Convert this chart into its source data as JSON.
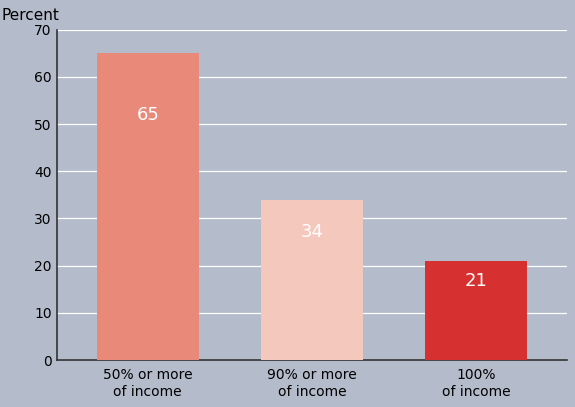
{
  "categories": [
    "50% or more\nof income",
    "90% or more\nof income",
    "100%\nof income"
  ],
  "values": [
    65,
    34,
    21
  ],
  "bar_colors": [
    "#e8897a",
    "#f5c8be",
    "#d63030"
  ],
  "bar_labels": [
    "65",
    "34",
    "21"
  ],
  "label_color": "#ffffff",
  "label_color_dark": "#555555",
  "ylabel": "Percent",
  "ylim": [
    0,
    70
  ],
  "yticks": [
    0,
    10,
    20,
    30,
    40,
    50,
    60,
    70
  ],
  "background_color": "#b4bccb",
  "plot_bg_color": "#b4bccb",
  "grid_color": "#ffffff",
  "spine_color": "#333333",
  "ylabel_fontsize": 11,
  "tick_fontsize": 10,
  "label_fontsize": 13,
  "bar_width": 0.62
}
